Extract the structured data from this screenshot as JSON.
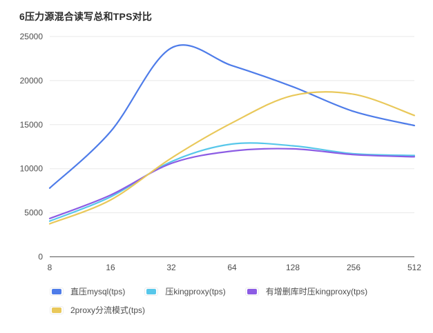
{
  "title": "6压力源混合读写总和TPS对比",
  "palette": {
    "title_color": "#2b2b2b",
    "axis_label_color": "#4d4d4d",
    "grid_color": "#e8e8e8",
    "axis_line_color": "#555555",
    "background": "#ffffff"
  },
  "chart_data": {
    "type": "line",
    "smooth": true,
    "grid": "horizontal-only",
    "legend_position": "bottom-left",
    "x": [
      "8",
      "16",
      "32",
      "64",
      "128",
      "256",
      "512"
    ],
    "xlabel": "",
    "ylabel": "",
    "ylim": [
      0,
      25000
    ],
    "y_ticks": [
      0,
      5000,
      10000,
      15000,
      20000,
      25000
    ],
    "series": [
      {
        "name": "直压mysql(tps)",
        "color": "#4e7ce9",
        "values": [
          7800,
          14200,
          23700,
          21700,
          19300,
          16500,
          14900
        ]
      },
      {
        "name": "压kingproxy(tps)",
        "color": "#57c7ea",
        "values": [
          4050,
          6800,
          10800,
          12800,
          12600,
          11700,
          11500
        ]
      },
      {
        "name": "有增删库时压kingproxy(tps)",
        "color": "#8c5ce4",
        "values": [
          4350,
          7000,
          10600,
          12000,
          12250,
          11600,
          11350
        ]
      },
      {
        "name": "2proxy分流模式(tps)",
        "color": "#e9c85a",
        "values": [
          3750,
          6450,
          11200,
          15200,
          18300,
          18450,
          16050
        ]
      }
    ]
  }
}
